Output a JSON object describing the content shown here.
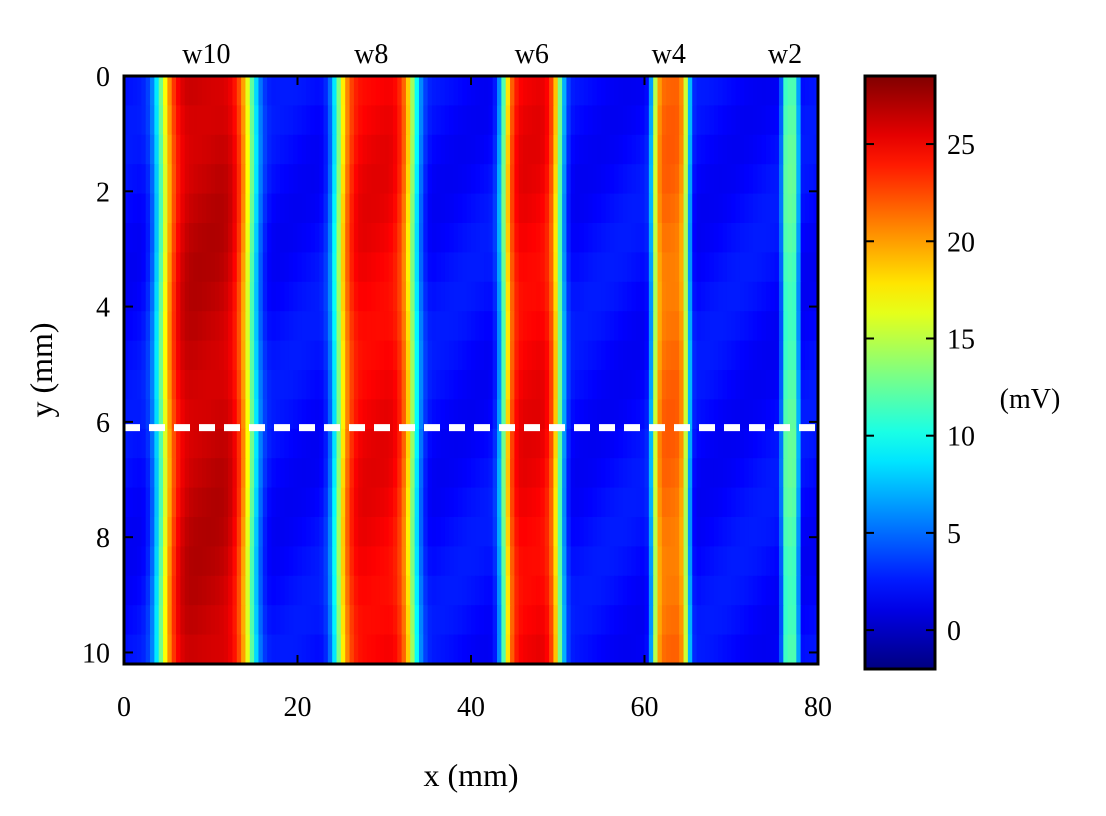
{
  "chart_data": {
    "type": "heatmap",
    "xlabel": "x (mm)",
    "ylabel": "y (mm)",
    "xlim": [
      0,
      80
    ],
    "ylim": [
      0,
      10.2
    ],
    "y_reversed": true,
    "x_ticks": [
      0,
      20,
      40,
      60,
      80
    ],
    "x_tick_labels": [
      "0",
      "20",
      "40",
      "60",
      "80"
    ],
    "y_ticks": [
      0,
      2,
      4,
      6,
      8,
      10
    ],
    "y_tick_labels": [
      "0",
      "2",
      "4",
      "6",
      "8",
      "10"
    ],
    "colorbar": {
      "label": "(mV)",
      "range": [
        -2,
        28.5
      ],
      "ticks": [
        0,
        5,
        10,
        15,
        20,
        25
      ],
      "tick_labels": [
        "0",
        "5",
        "10",
        "15",
        "20",
        "25"
      ],
      "colormap": "jet"
    },
    "baseline_mV": 2,
    "stripes": [
      {
        "label": "w10",
        "center_x": 9.5,
        "half_width": 5.4,
        "peak_mV": 26.5
      },
      {
        "label": "w8",
        "center_x": 29.0,
        "half_width": 4.6,
        "peak_mV": 25.0
      },
      {
        "label": "w6",
        "center_x": 47.0,
        "half_width": 3.4,
        "peak_mV": 25.0
      },
      {
        "label": "w4",
        "center_x": 63.0,
        "half_width": 2.1,
        "peak_mV": 21.5
      },
      {
        "label": "w2",
        "center_x": 76.8,
        "half_width": 1.0,
        "peak_mV": 12.0
      }
    ],
    "top_labels": [
      {
        "text": "w10",
        "x": 9.5
      },
      {
        "text": "w8",
        "x": 28.5
      },
      {
        "text": "w6",
        "x": 47.0
      },
      {
        "text": "w4",
        "x": 62.8
      },
      {
        "text": "w2",
        "x": 76.2
      }
    ],
    "reference_line": {
      "y": 6.1,
      "style": "dashed",
      "color": "#ffffff"
    },
    "grid": false
  }
}
